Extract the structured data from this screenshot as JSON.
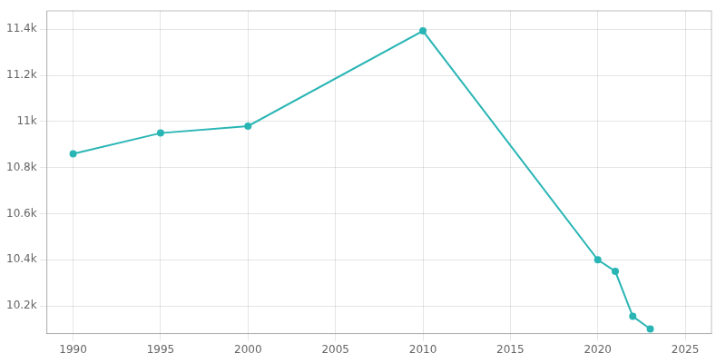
{
  "chart_data": {
    "type": "line",
    "x": [
      1990,
      1995,
      2000,
      2010,
      2020,
      2021,
      2022,
      2023
    ],
    "values": [
      10860,
      10950,
      10980,
      11393,
      10400,
      10350,
      10155,
      10100
    ],
    "color": "#2ab5b5",
    "marker": "circle",
    "xlim": [
      1988.5,
      2026.5
    ],
    "xticks": [
      1990,
      1995,
      2000,
      2005,
      2010,
      2015,
      2020,
      2025
    ],
    "ylim": [
      10080,
      11480
    ],
    "yticks": [
      {
        "value": 10200,
        "label": "10.2k"
      },
      {
        "value": 10400,
        "label": "10.4k"
      },
      {
        "value": 10600,
        "label": "10.6k"
      },
      {
        "value": 10800,
        "label": "10.8k"
      },
      {
        "value": 11000,
        "label": "11k"
      },
      {
        "value": 11200,
        "label": "11.2k"
      },
      {
        "value": 11400,
        "label": "11.4k"
      }
    ],
    "grid": true
  }
}
